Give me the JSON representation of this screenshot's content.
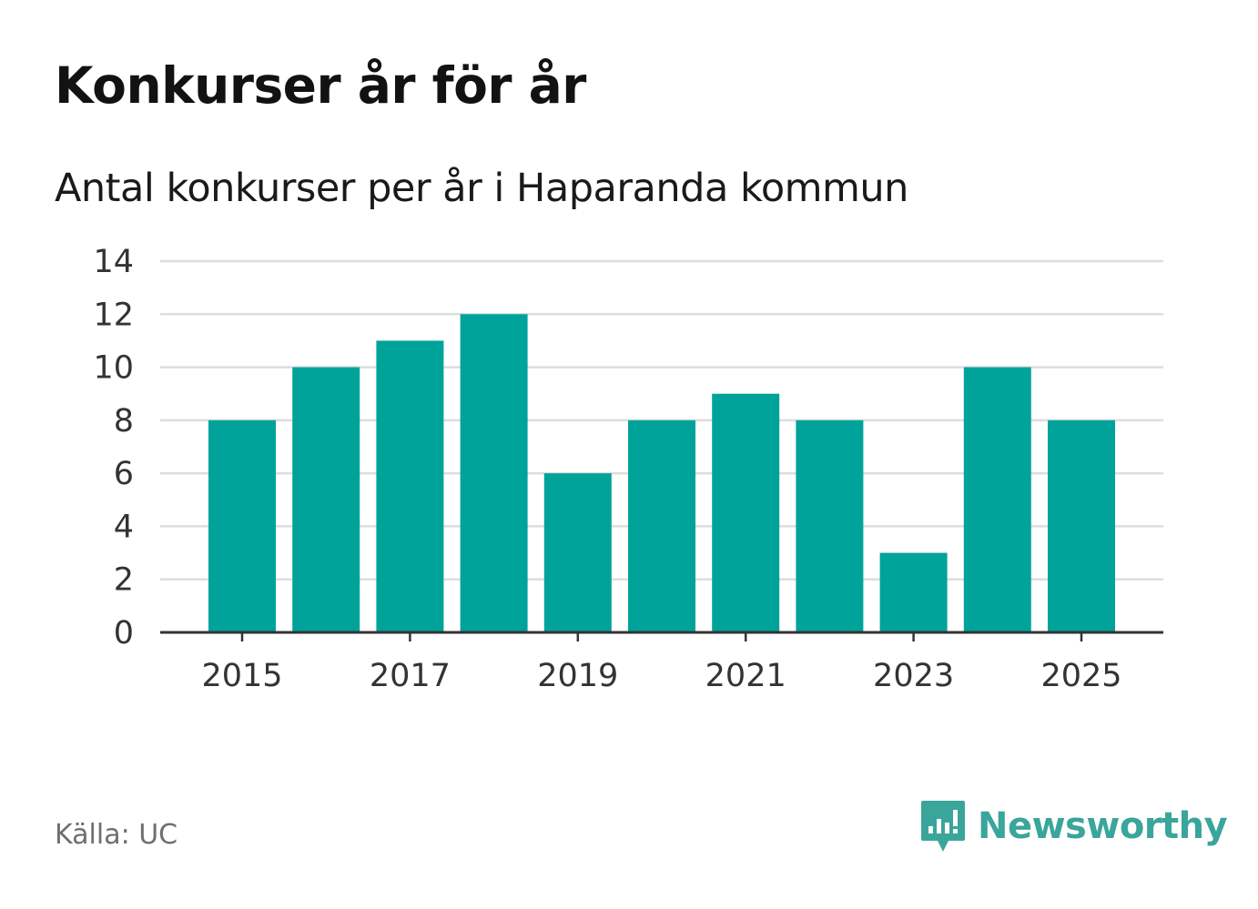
{
  "title": "Konkurser år för år",
  "subtitle": "Antal konkurser per år i Haparanda kommun",
  "source": "Källa: UC",
  "brand": "Newsworthy",
  "colors": {
    "bar": "#00a39a",
    "grid": "#dddddd",
    "axis": "#333333",
    "brand": "#3aa69b"
  },
  "icons": {
    "brand_logo": "newsworthy-chart-bubble-icon"
  },
  "chart_data": {
    "type": "bar",
    "categories": [
      2015,
      2016,
      2017,
      2018,
      2019,
      2020,
      2021,
      2022,
      2023,
      2024,
      2025
    ],
    "values": [
      8,
      10,
      11,
      12,
      6,
      8,
      9,
      8,
      3,
      10,
      8
    ],
    "x_ticks": [
      "2015",
      "2017",
      "2019",
      "2021",
      "2023",
      "2025"
    ],
    "y_ticks": [
      0,
      2,
      4,
      6,
      8,
      10,
      12,
      14
    ],
    "ylim": [
      0,
      14
    ],
    "grid": true,
    "legend": "none"
  }
}
